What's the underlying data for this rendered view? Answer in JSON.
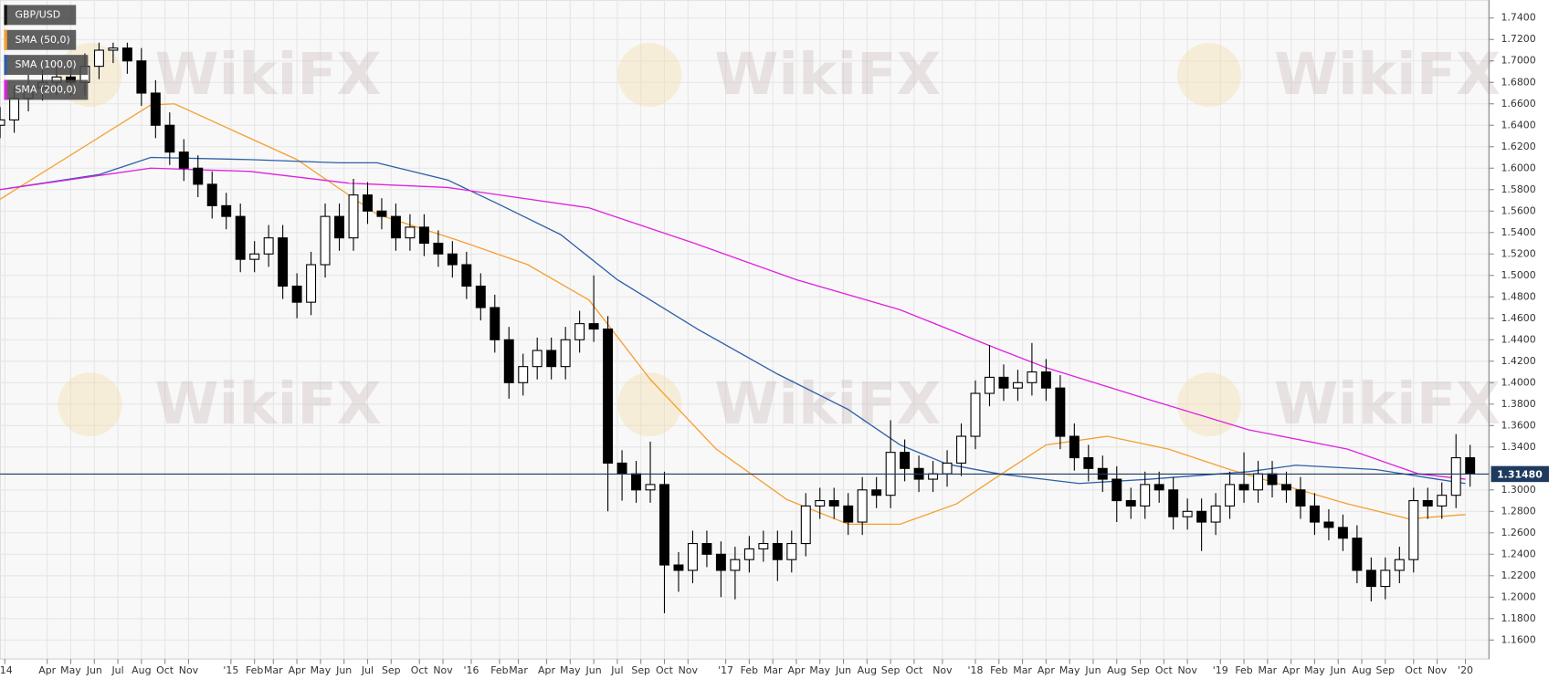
{
  "chart_data": {
    "type": "candlestick",
    "watermark": "WikiFX",
    "grid": true,
    "xlim": [
      0,
      316
    ],
    "ylim": [
      1.1423,
      1.7568
    ],
    "xticks": [
      {
        "value": 1,
        "label": "'14"
      },
      {
        "value": 10,
        "label": "Apr"
      },
      {
        "value": 15,
        "label": "May"
      },
      {
        "value": 20,
        "label": "Jun"
      },
      {
        "value": 25,
        "label": "Jul"
      },
      {
        "value": 30,
        "label": "Aug"
      },
      {
        "value": 35,
        "label": "Oct"
      },
      {
        "value": 40,
        "label": "Nov"
      },
      {
        "value": 49,
        "label": "'15"
      },
      {
        "value": 54,
        "label": "Feb"
      },
      {
        "value": 58,
        "label": "Mar"
      },
      {
        "value": 63,
        "label": "Apr"
      },
      {
        "value": 68,
        "label": "May"
      },
      {
        "value": 73,
        "label": "Jun"
      },
      {
        "value": 78,
        "label": "Jul"
      },
      {
        "value": 83,
        "label": "Sep"
      },
      {
        "value": 89,
        "label": "Oct"
      },
      {
        "value": 94,
        "label": "Nov"
      },
      {
        "value": 100,
        "label": "'16"
      },
      {
        "value": 106,
        "label": "Feb"
      },
      {
        "value": 110,
        "label": "Mar"
      },
      {
        "value": 116,
        "label": "Apr"
      },
      {
        "value": 121,
        "label": "May"
      },
      {
        "value": 126,
        "label": "Jun"
      },
      {
        "value": 131,
        "label": "Jul"
      },
      {
        "value": 136,
        "label": "Sep"
      },
      {
        "value": 141,
        "label": "Oct"
      },
      {
        "value": 146,
        "label": "Nov"
      },
      {
        "value": 154,
        "label": "'17"
      },
      {
        "value": 159,
        "label": "Feb"
      },
      {
        "value": 164,
        "label": "Mar"
      },
      {
        "value": 169,
        "label": "Apr"
      },
      {
        "value": 174,
        "label": "May"
      },
      {
        "value": 179,
        "label": "Jun"
      },
      {
        "value": 184,
        "label": "Aug"
      },
      {
        "value": 189,
        "label": "Sep"
      },
      {
        "value": 194,
        "label": "Oct"
      },
      {
        "value": 200,
        "label": "Nov"
      },
      {
        "value": 207,
        "label": "'18"
      },
      {
        "value": 212,
        "label": "Feb"
      },
      {
        "value": 217,
        "label": "Mar"
      },
      {
        "value": 222,
        "label": "Apr"
      },
      {
        "value": 227,
        "label": "May"
      },
      {
        "value": 232,
        "label": "Jun"
      },
      {
        "value": 237,
        "label": "Aug"
      },
      {
        "value": 242,
        "label": "Sep"
      },
      {
        "value": 247,
        "label": "Oct"
      },
      {
        "value": 252,
        "label": "Nov"
      },
      {
        "value": 259,
        "label": "'19"
      },
      {
        "value": 264,
        "label": "Feb"
      },
      {
        "value": 269,
        "label": "Mar"
      },
      {
        "value": 274,
        "label": "Apr"
      },
      {
        "value": 279,
        "label": "May"
      },
      {
        "value": 284,
        "label": "Jun"
      },
      {
        "value": 289,
        "label": "Aug"
      },
      {
        "value": 294,
        "label": "Sep"
      },
      {
        "value": 300,
        "label": "Oct"
      },
      {
        "value": 305,
        "label": "Nov"
      },
      {
        "value": 311,
        "label": "'20"
      }
    ],
    "yticks": [
      {
        "value": 1.74,
        "label": "1.7400"
      },
      {
        "value": 1.72,
        "label": "1.7200"
      },
      {
        "value": 1.7,
        "label": "1.7000"
      },
      {
        "value": 1.68,
        "label": "1.6800"
      },
      {
        "value": 1.66,
        "label": "1.6600"
      },
      {
        "value": 1.64,
        "label": "1.6400"
      },
      {
        "value": 1.62,
        "label": "1.6200"
      },
      {
        "value": 1.6,
        "label": "1.6000"
      },
      {
        "value": 1.58,
        "label": "1.5800"
      },
      {
        "value": 1.56,
        "label": "1.5600"
      },
      {
        "value": 1.54,
        "label": "1.5400"
      },
      {
        "value": 1.52,
        "label": "1.5200"
      },
      {
        "value": 1.5,
        "label": "1.5000"
      },
      {
        "value": 1.48,
        "label": "1.4800"
      },
      {
        "value": 1.46,
        "label": "1.4600"
      },
      {
        "value": 1.44,
        "label": "1.4400"
      },
      {
        "value": 1.42,
        "label": "1.4200"
      },
      {
        "value": 1.4,
        "label": "1.4000"
      },
      {
        "value": 1.38,
        "label": "1.3800"
      },
      {
        "value": 1.36,
        "label": "1.3600"
      },
      {
        "value": 1.34,
        "label": "1.3400"
      },
      {
        "value": 1.3,
        "label": "1.3000"
      },
      {
        "value": 1.28,
        "label": "1.2800"
      },
      {
        "value": 1.26,
        "label": "1.2600"
      },
      {
        "value": 1.24,
        "label": "1.2400"
      },
      {
        "value": 1.22,
        "label": "1.2200"
      },
      {
        "value": 1.2,
        "label": "1.2000"
      },
      {
        "value": 1.18,
        "label": "1.1800"
      },
      {
        "value": 1.16,
        "label": "1.1600"
      }
    ],
    "last_price": {
      "value": 1.3148,
      "label": "1.31480"
    },
    "series": [
      {
        "name": "GBP/USD",
        "color": "#000000",
        "up_color": "#ffffff",
        "x": [
          0,
          3,
          6,
          9,
          12,
          15,
          18,
          21,
          24,
          27,
          30,
          33,
          36,
          39,
          42,
          45,
          48,
          51,
          54,
          57,
          60,
          63,
          66,
          69,
          72,
          75,
          78,
          81,
          84,
          87,
          90,
          93,
          96,
          99,
          102,
          105,
          108,
          111,
          114,
          117,
          120,
          123,
          126,
          129,
          132,
          135,
          138,
          141,
          144,
          147,
          150,
          153,
          156,
          159,
          162,
          165,
          168,
          171,
          174,
          177,
          180,
          183,
          186,
          189,
          192,
          195,
          198,
          201,
          204,
          207,
          210,
          213,
          216,
          219,
          222,
          225,
          228,
          231,
          234,
          237,
          240,
          243,
          246,
          249,
          252,
          255,
          258,
          261,
          264,
          267,
          270,
          273,
          276,
          279,
          282,
          285,
          288,
          291,
          294,
          297,
          300,
          303,
          306,
          309,
          312
        ],
        "open": [
          1.64,
          1.645,
          1.665,
          1.675,
          1.68,
          1.685,
          1.68,
          1.695,
          1.71,
          1.712,
          1.7,
          1.67,
          1.64,
          1.615,
          1.6,
          1.585,
          1.565,
          1.555,
          1.515,
          1.52,
          1.535,
          1.49,
          1.475,
          1.51,
          1.555,
          1.535,
          1.575,
          1.56,
          1.555,
          1.535,
          1.545,
          1.53,
          1.52,
          1.51,
          1.49,
          1.47,
          1.44,
          1.4,
          1.415,
          1.43,
          1.415,
          1.44,
          1.455,
          1.45,
          1.325,
          1.315,
          1.3,
          1.305,
          1.23,
          1.225,
          1.25,
          1.24,
          1.225,
          1.235,
          1.245,
          1.25,
          1.235,
          1.25,
          1.285,
          1.29,
          1.285,
          1.27,
          1.3,
          1.295,
          1.335,
          1.32,
          1.31,
          1.315,
          1.325,
          1.35,
          1.39,
          1.405,
          1.395,
          1.4,
          1.41,
          1.395,
          1.35,
          1.33,
          1.32,
          1.31,
          1.29,
          1.285,
          1.305,
          1.3,
          1.275,
          1.28,
          1.27,
          1.285,
          1.305,
          1.3,
          1.315,
          1.305,
          1.3,
          1.285,
          1.27,
          1.265,
          1.255,
          1.225,
          1.21,
          1.225,
          1.235,
          1.29,
          1.285,
          1.295,
          1.33
        ],
        "high": [
          1.657,
          1.677,
          1.687,
          1.692,
          1.697,
          1.697,
          1.707,
          1.717,
          1.717,
          1.717,
          1.712,
          1.682,
          1.652,
          1.627,
          1.612,
          1.597,
          1.577,
          1.567,
          1.532,
          1.547,
          1.547,
          1.502,
          1.522,
          1.567,
          1.567,
          1.59,
          1.587,
          1.572,
          1.567,
          1.557,
          1.557,
          1.542,
          1.532,
          1.522,
          1.502,
          1.482,
          1.452,
          1.427,
          1.442,
          1.442,
          1.452,
          1.467,
          1.5,
          1.462,
          1.337,
          1.327,
          1.345,
          1.317,
          1.242,
          1.262,
          1.262,
          1.252,
          1.247,
          1.257,
          1.262,
          1.262,
          1.262,
          1.297,
          1.302,
          1.302,
          1.297,
          1.312,
          1.312,
          1.365,
          1.347,
          1.332,
          1.327,
          1.337,
          1.362,
          1.402,
          1.435,
          1.417,
          1.412,
          1.437,
          1.422,
          1.407,
          1.362,
          1.342,
          1.332,
          1.322,
          1.302,
          1.317,
          1.317,
          1.312,
          1.292,
          1.292,
          1.297,
          1.317,
          1.335,
          1.327,
          1.327,
          1.317,
          1.312,
          1.297,
          1.282,
          1.277,
          1.267,
          1.237,
          1.237,
          1.247,
          1.302,
          1.302,
          1.307,
          1.352,
          1.342
        ],
        "low": [
          1.628,
          1.633,
          1.653,
          1.663,
          1.668,
          1.668,
          1.668,
          1.683,
          1.698,
          1.688,
          1.658,
          1.628,
          1.603,
          1.588,
          1.573,
          1.553,
          1.543,
          1.503,
          1.503,
          1.508,
          1.478,
          1.46,
          1.463,
          1.498,
          1.523,
          1.523,
          1.548,
          1.543,
          1.523,
          1.523,
          1.518,
          1.508,
          1.498,
          1.478,
          1.458,
          1.428,
          1.385,
          1.388,
          1.403,
          1.403,
          1.403,
          1.428,
          1.438,
          1.28,
          1.29,
          1.288,
          1.288,
          1.185,
          1.205,
          1.213,
          1.228,
          1.2,
          1.198,
          1.223,
          1.233,
          1.215,
          1.223,
          1.238,
          1.273,
          1.273,
          1.258,
          1.258,
          1.283,
          1.283,
          1.308,
          1.298,
          1.298,
          1.303,
          1.313,
          1.338,
          1.378,
          1.383,
          1.383,
          1.388,
          1.383,
          1.338,
          1.318,
          1.308,
          1.298,
          1.27,
          1.273,
          1.273,
          1.288,
          1.263,
          1.263,
          1.243,
          1.258,
          1.273,
          1.288,
          1.288,
          1.293,
          1.288,
          1.273,
          1.258,
          1.253,
          1.243,
          1.213,
          1.196,
          1.198,
          1.213,
          1.223,
          1.273,
          1.273,
          1.283,
          1.303
        ],
        "close": [
          1.645,
          1.665,
          1.675,
          1.68,
          1.685,
          1.68,
          1.695,
          1.71,
          1.712,
          1.7,
          1.67,
          1.64,
          1.615,
          1.6,
          1.585,
          1.565,
          1.555,
          1.515,
          1.52,
          1.535,
          1.49,
          1.475,
          1.51,
          1.555,
          1.535,
          1.575,
          1.56,
          1.555,
          1.535,
          1.545,
          1.53,
          1.52,
          1.51,
          1.49,
          1.47,
          1.44,
          1.4,
          1.415,
          1.43,
          1.415,
          1.44,
          1.455,
          1.45,
          1.325,
          1.315,
          1.3,
          1.305,
          1.23,
          1.225,
          1.25,
          1.24,
          1.225,
          1.235,
          1.245,
          1.25,
          1.235,
          1.25,
          1.285,
          1.29,
          1.285,
          1.27,
          1.3,
          1.295,
          1.335,
          1.32,
          1.31,
          1.315,
          1.325,
          1.35,
          1.39,
          1.405,
          1.395,
          1.4,
          1.41,
          1.395,
          1.35,
          1.33,
          1.32,
          1.31,
          1.29,
          1.285,
          1.305,
          1.3,
          1.275,
          1.28,
          1.27,
          1.285,
          1.305,
          1.3,
          1.315,
          1.305,
          1.3,
          1.285,
          1.27,
          1.265,
          1.255,
          1.225,
          1.21,
          1.225,
          1.235,
          1.29,
          1.285,
          1.295,
          1.33,
          1.3148
        ]
      },
      {
        "name": "SMA (50,0)",
        "color": "#f5a030",
        "type": "line",
        "x": [
          0,
          32,
          37,
          63,
          80,
          97,
          112,
          125,
          138,
          152,
          167,
          180,
          191,
          203,
          214,
          222,
          235,
          248,
          261,
          275,
          286,
          299,
          311
        ],
        "values": [
          1.571,
          1.659,
          1.66,
          1.608,
          1.557,
          1.533,
          1.51,
          1.477,
          1.403,
          1.338,
          1.291,
          1.268,
          1.268,
          1.287,
          1.319,
          1.342,
          1.35,
          1.338,
          1.319,
          1.301,
          1.287,
          1.273,
          1.277
        ]
      },
      {
        "name": "SMA (100,0)",
        "color": "#2c5ea8",
        "type": "line",
        "x": [
          0,
          21,
          32,
          53,
          72,
          80,
          95,
          106,
          119,
          131,
          148,
          165,
          180,
          191,
          201,
          212,
          229,
          244,
          265,
          275,
          292,
          305,
          311
        ],
        "values": [
          1.58,
          1.594,
          1.61,
          1.608,
          1.605,
          1.605,
          1.589,
          1.566,
          1.538,
          1.496,
          1.45,
          1.408,
          1.375,
          1.342,
          1.324,
          1.315,
          1.306,
          1.31,
          1.317,
          1.323,
          1.319,
          1.31,
          1.306
        ]
      },
      {
        "name": "SMA (200,0)",
        "color": "#e020e0",
        "type": "line",
        "x": [
          0,
          32,
          53,
          74,
          95,
          125,
          148,
          169,
          191,
          212,
          222,
          244,
          265,
          286,
          301,
          311
        ],
        "values": [
          1.58,
          1.6,
          1.597,
          1.586,
          1.582,
          1.563,
          1.529,
          1.496,
          1.468,
          1.431,
          1.414,
          1.384,
          1.356,
          1.338,
          1.315,
          1.31
        ]
      }
    ]
  }
}
